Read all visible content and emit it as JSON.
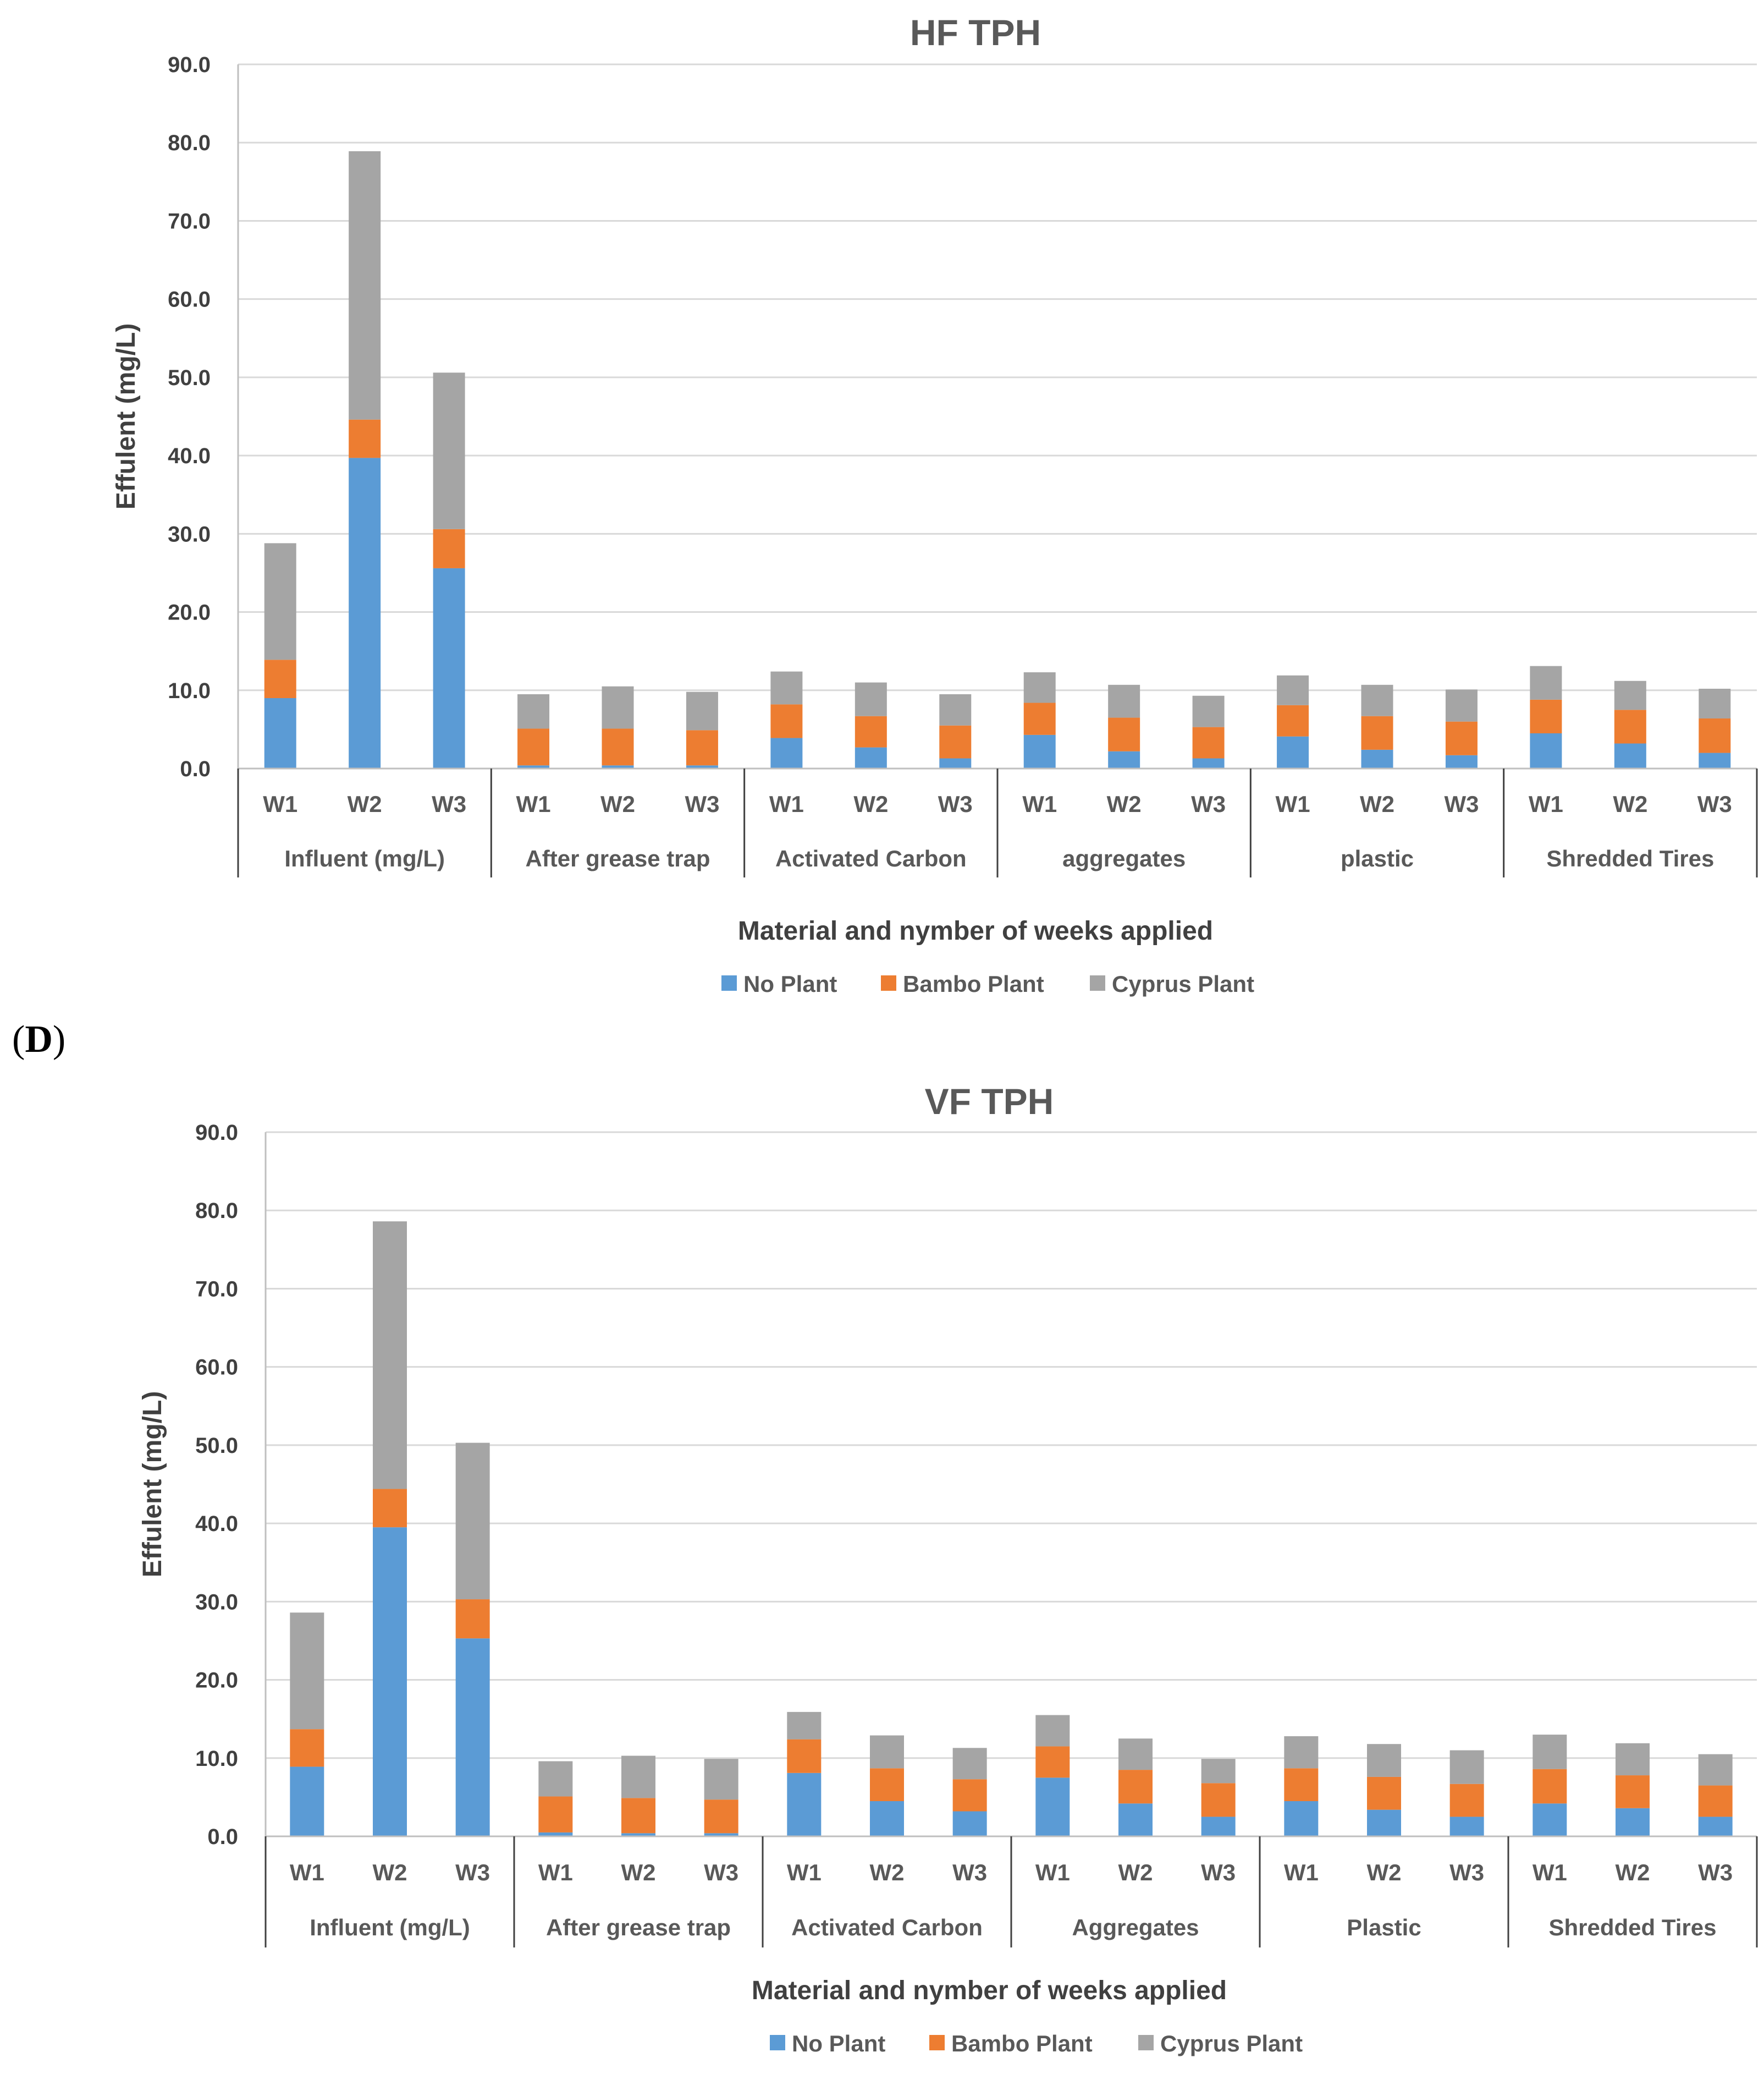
{
  "panel_label": {
    "open": "(",
    "letter": "D",
    "close": ")"
  },
  "colors": {
    "no_plant": "#5B9BD5",
    "bambo_plant": "#ED7D31",
    "cyprus_plant": "#A5A5A5"
  },
  "chart_data": [
    {
      "type": "bar",
      "stacked": true,
      "title": "HF TPH",
      "ylabel": "Effulent (mg/L)",
      "xlabel": "Material and nymber of weeks applied",
      "ylim": [
        0,
        90
      ],
      "yticks": [
        "0.0",
        "10.0",
        "20.0",
        "30.0",
        "40.0",
        "50.0",
        "60.0",
        "70.0",
        "80.0",
        "90.0"
      ],
      "grid": true,
      "legend_position": "bottom",
      "groups": [
        "Influent (mg/L)",
        "After grease trap",
        "Activated Carbon",
        "aggregates",
        "plastic",
        "Shredded Tires"
      ],
      "weeks": [
        "W1",
        "W2",
        "W3"
      ],
      "series": [
        {
          "name": "No Plant",
          "values": [
            9.0,
            39.7,
            25.6,
            0.4,
            0.4,
            0.4,
            3.9,
            2.7,
            1.3,
            4.3,
            2.2,
            1.3,
            4.1,
            2.4,
            1.7,
            4.5,
            3.2,
            2.0
          ]
        },
        {
          "name": "Bambo Plant",
          "values": [
            4.9,
            4.9,
            5.0,
            4.7,
            4.7,
            4.5,
            4.3,
            4.0,
            4.2,
            4.1,
            4.3,
            4.0,
            4.0,
            4.3,
            4.3,
            4.3,
            4.3,
            4.4
          ]
        },
        {
          "name": "Cyprus Plant",
          "values": [
            14.9,
            34.3,
            20.0,
            4.4,
            5.4,
            4.9,
            4.2,
            4.3,
            4.0,
            3.9,
            4.2,
            4.0,
            3.8,
            4.0,
            4.1,
            4.3,
            3.7,
            3.8
          ]
        }
      ]
    },
    {
      "type": "bar",
      "stacked": true,
      "title": "VF TPH",
      "ylabel": "Effulent (mg/L)",
      "xlabel": "Material and nymber of weeks applied",
      "ylim": [
        0,
        90
      ],
      "yticks": [
        "0.0",
        "10.0",
        "20.0",
        "30.0",
        "40.0",
        "50.0",
        "60.0",
        "70.0",
        "80.0",
        "90.0"
      ],
      "grid": true,
      "legend_position": "bottom",
      "groups": [
        "Influent (mg/L)",
        "After grease trap",
        "Activated Carbon",
        "Aggregates",
        "Plastic",
        "Shredded Tires"
      ],
      "weeks": [
        "W1",
        "W2",
        "W3"
      ],
      "series": [
        {
          "name": "No Plant",
          "values": [
            8.9,
            39.5,
            25.3,
            0.5,
            0.4,
            0.4,
            8.1,
            4.5,
            3.2,
            7.5,
            4.2,
            2.5,
            4.5,
            3.4,
            2.5,
            4.2,
            3.6,
            2.5
          ]
        },
        {
          "name": "Bambo Plant",
          "values": [
            4.8,
            4.9,
            5.0,
            4.6,
            4.5,
            4.3,
            4.3,
            4.2,
            4.1,
            4.0,
            4.3,
            4.3,
            4.2,
            4.2,
            4.2,
            4.4,
            4.2,
            4.0
          ]
        },
        {
          "name": "Cyprus Plant",
          "values": [
            14.9,
            34.2,
            20.0,
            4.5,
            5.4,
            5.2,
            3.5,
            4.2,
            4.0,
            4.0,
            4.0,
            3.1,
            4.1,
            4.2,
            4.3,
            4.4,
            4.1,
            4.0
          ]
        }
      ]
    }
  ]
}
